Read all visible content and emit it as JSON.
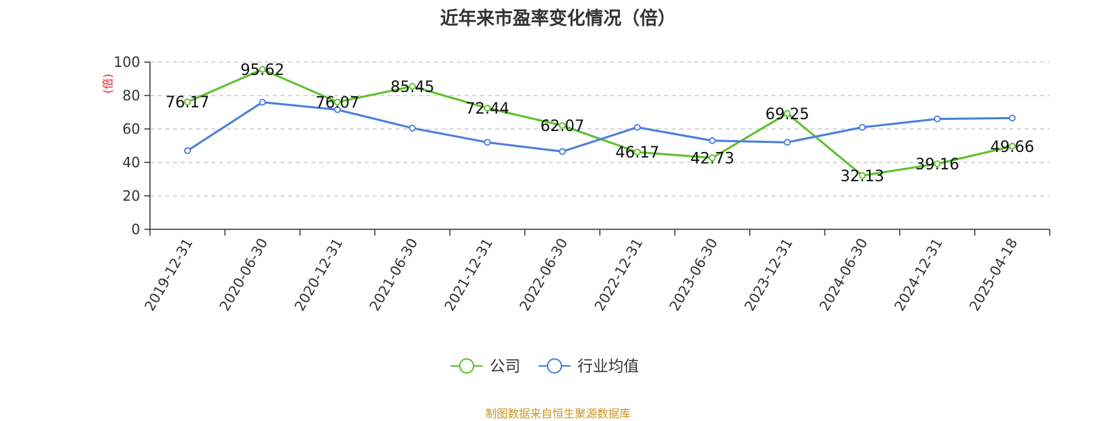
{
  "chart_data": {
    "type": "line",
    "title": "近年来市盈率变化情况（倍）",
    "ylabel": "(倍)",
    "ylim": [
      0,
      100
    ],
    "yticks": [
      0,
      20,
      40,
      60,
      80,
      100
    ],
    "grid": true,
    "legend_position": "bottom",
    "categories": [
      "2019-12-31",
      "2020-06-30",
      "2020-12-31",
      "2021-06-30",
      "2021-12-31",
      "2022-06-30",
      "2022-12-31",
      "2023-06-30",
      "2023-12-31",
      "2024-06-30",
      "2024-12-31",
      "2025-04-18"
    ],
    "series": [
      {
        "name": "公司",
        "color": "#5cc12a",
        "show_labels": true,
        "values": [
          76.17,
          95.62,
          76.07,
          85.45,
          72.44,
          62.07,
          46.17,
          42.73,
          69.25,
          32.13,
          39.16,
          49.66
        ]
      },
      {
        "name": "行业均值",
        "color": "#4a7fdc",
        "show_labels": false,
        "values": [
          47.0,
          76.0,
          71.5,
          60.5,
          52.0,
          46.5,
          61.0,
          53.0,
          52.0,
          61.0,
          66.0,
          66.5
        ]
      }
    ],
    "source": "制图数据来自恒生聚源数据库",
    "ylabel_color": "#e02020"
  }
}
